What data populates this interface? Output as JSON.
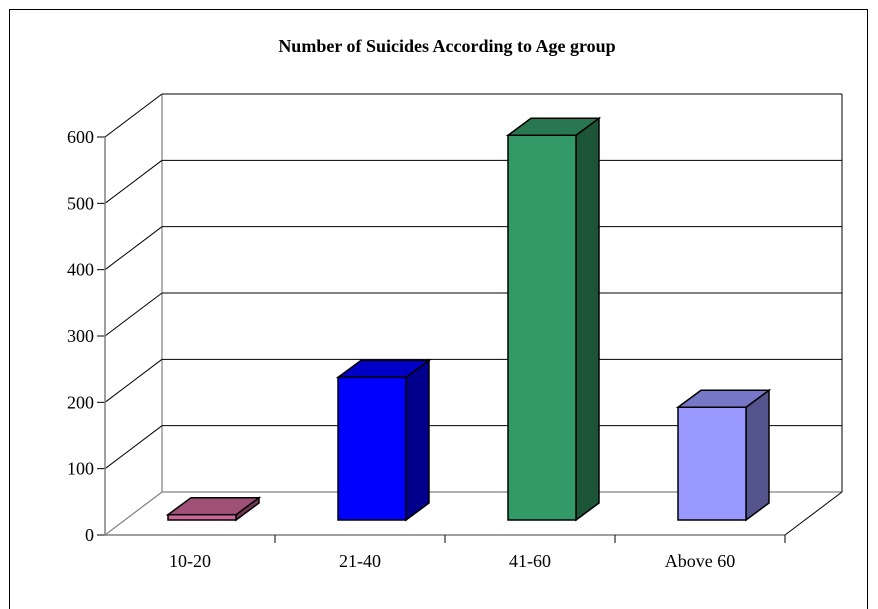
{
  "chart_data": {
    "type": "bar",
    "title": "Number of Suicides According to Age group",
    "categories": [
      "10-20",
      "21-40",
      "41-60",
      "Above 60"
    ],
    "values": [
      8,
      215,
      580,
      170
    ],
    "colors": [
      "#cc6699",
      "#0000ff",
      "#339966",
      "#9999ff"
    ],
    "ylim": [
      0,
      600
    ],
    "yticks": [
      0,
      100,
      200,
      300,
      400,
      500,
      600
    ],
    "grid": true,
    "style": "3d",
    "xlabel": "",
    "ylabel": ""
  }
}
